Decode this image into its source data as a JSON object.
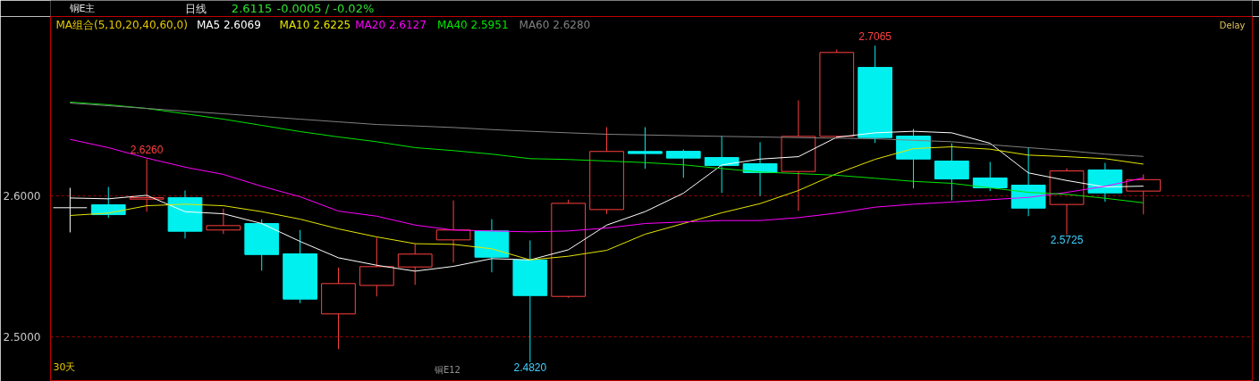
{
  "chart_data": {
    "type": "candlestick",
    "title": "铜E主",
    "legend_title": "MA组合(5,10,20,40,60,0)",
    "grid": "y",
    "tick_labels": "y",
    "annotations": [
      "日线",
      "2.6115",
      "-0.0005 / -0.02%",
      "Delay",
      "30天",
      "铜E12",
      {
        "text": "2.6260",
        "y": 2.626
      },
      {
        "text": "2.7065",
        "y": 2.7065
      },
      {
        "text": "2.4820",
        "y": 2.482
      },
      {
        "text": "2.5725",
        "y": 2.5725
      }
    ],
    "categories": [
      null,
      null,
      null,
      null,
      null,
      null,
      null,
      null,
      null,
      null,
      null,
      null,
      null,
      null,
      null,
      null,
      null,
      null,
      null,
      null,
      null,
      null,
      null,
      null,
      null,
      null,
      null,
      null,
      null
    ],
    "ylim": [
      2.4684,
      2.7272
    ],
    "yticks": [
      {
        "value": 2.5,
        "label": "2.5000"
      },
      {
        "value": 2.6,
        "label": "2.6000"
      }
    ],
    "ohlc": [
      [
        2.5916,
        2.6057,
        2.5741,
        2.5916
      ],
      [
        2.5937,
        2.6063,
        2.5844,
        2.5867
      ],
      [
        2.5977,
        2.626,
        2.5888,
        2.5987
      ],
      [
        2.5987,
        2.6038,
        2.5698,
        2.5749
      ],
      [
        2.5758,
        2.5909,
        2.573,
        2.5789
      ],
      [
        2.5804,
        2.5834,
        2.547,
        2.5584
      ],
      [
        2.5589,
        2.5758,
        2.5239,
        2.5268
      ],
      [
        2.5163,
        2.5492,
        2.4913,
        2.5378
      ],
      [
        2.5365,
        2.5704,
        2.5287,
        2.5498
      ],
      [
        2.5496,
        2.566,
        2.5369,
        2.5587
      ],
      [
        2.5688,
        2.5968,
        2.5527,
        2.5758
      ],
      [
        2.5751,
        2.5835,
        2.5458,
        2.5565
      ],
      [
        2.5546,
        2.5684,
        2.482,
        2.5293
      ],
      [
        2.5287,
        2.5973,
        2.5277,
        2.5947
      ],
      [
        2.5903,
        2.6487,
        2.5872,
        2.6315
      ],
      [
        2.6315,
        2.6487,
        2.6192,
        2.63
      ],
      [
        2.6316,
        2.6329,
        2.6128,
        2.6268
      ],
      [
        2.6272,
        2.6426,
        2.6021,
        2.6215
      ],
      [
        2.6228,
        2.638,
        2.6,
        2.6165
      ],
      [
        2.6173,
        2.6677,
        2.5894,
        2.6422
      ],
      [
        2.6422,
        2.7038,
        2.6405,
        2.7017
      ],
      [
        2.6911,
        2.7065,
        2.6375,
        2.6413
      ],
      [
        2.6424,
        2.6475,
        2.6053,
        2.6261
      ],
      [
        2.6247,
        2.6373,
        2.5968,
        2.612
      ],
      [
        2.6127,
        2.6241,
        2.6034,
        2.6057
      ],
      [
        2.6076,
        2.6342,
        2.5856,
        2.5913
      ],
      [
        2.5939,
        2.6196,
        2.5725,
        2.6177
      ],
      [
        2.6184,
        2.6234,
        2.5958,
        2.6021
      ],
      [
        2.6034,
        2.6152,
        2.5869,
        2.6115
      ]
    ],
    "colors": [
      "#ffffff",
      "#00f0f0",
      "#ff4040",
      "#00f0f0",
      "#ff4040",
      "#00f0f0",
      "#00f0f0",
      "#ff4040",
      "#ff4040",
      "#ff4040",
      "#ff4040",
      "#00f0f0",
      "#00f0f0",
      "#ff4040",
      "#ff4040",
      "#00f0f0",
      "#00f0f0",
      "#00f0f0",
      "#00f0f0",
      "#ff4040",
      "#ff4040",
      "#00f0f0",
      "#00f0f0",
      "#00f0f0",
      "#00f0f0",
      "#00f0f0",
      "#ff4040",
      "#00f0f0",
      "#ff4040"
    ],
    "series": [
      {
        "name": "MA5 2.6069",
        "type": "line",
        "color": "#ffffff",
        "values": [
          2.5985,
          2.5979,
          2.6004,
          2.5888,
          2.5873,
          2.5804,
          2.5677,
          2.5561,
          2.5508,
          2.5466,
          2.55,
          2.5555,
          2.5546,
          2.5618,
          2.5793,
          2.5888,
          2.6019,
          2.6219,
          2.6261,
          2.6278,
          2.6416,
          2.6447,
          2.6458,
          2.6447,
          2.6373,
          2.6163,
          2.6109,
          2.6063,
          2.6069
        ]
      },
      {
        "name": "MA10 2.6225",
        "type": "line",
        "color": "#e6e600",
        "values": [
          2.5861,
          2.5878,
          2.593,
          2.5941,
          2.593,
          2.5888,
          2.5835,
          2.5766,
          2.5709,
          2.5661,
          2.5656,
          2.5625,
          2.5546,
          2.5572,
          2.5614,
          2.5728,
          2.5804,
          2.588,
          2.5945,
          2.6038,
          2.6158,
          2.6259,
          2.6335,
          2.6348,
          2.6331,
          2.6289,
          2.6278,
          2.6264,
          2.6225
        ]
      },
      {
        "name": "MA20 2.6127",
        "type": "line",
        "color": "#ff00ff",
        "values": [
          2.6401,
          2.6342,
          2.6268,
          2.6204,
          2.6152,
          2.6068,
          2.5994,
          2.5892,
          2.5856,
          2.5793,
          2.5758,
          2.5751,
          2.5745,
          2.5751,
          2.5772,
          2.5804,
          2.5815,
          2.5825,
          2.5825,
          2.5846,
          2.5878,
          2.592,
          2.5941,
          2.5956,
          2.5973,
          2.5989,
          2.6025,
          2.6068,
          2.6127
        ]
      },
      {
        "name": "MA40 2.5951",
        "type": "line",
        "color": "#00e600",
        "values": [
          2.6665,
          2.6646,
          2.662,
          2.6582,
          2.6544,
          2.65,
          2.6456,
          2.6418,
          2.6384,
          2.6342,
          2.6321,
          2.6296,
          2.6264,
          2.6258,
          2.6247,
          2.6236,
          2.622,
          2.6194,
          2.6169,
          2.6158,
          2.6146,
          2.6125,
          2.6103,
          2.6089,
          2.6057,
          2.6025,
          2.6011,
          2.5983,
          2.5951
        ]
      },
      {
        "name": "MA60 2.6280",
        "type": "line",
        "color": "#808080",
        "values": [
          2.6658,
          2.6639,
          2.662,
          2.6601,
          2.6582,
          2.6563,
          2.6544,
          2.6525,
          2.6506,
          2.6496,
          2.6485,
          2.647,
          2.6458,
          2.6447,
          2.6437,
          2.6432,
          2.6427,
          2.6422,
          2.6418,
          2.6413,
          2.6409,
          2.6405,
          2.6394,
          2.6384,
          2.6363,
          2.6342,
          2.6321,
          2.6296,
          2.628
        ]
      }
    ]
  }
}
